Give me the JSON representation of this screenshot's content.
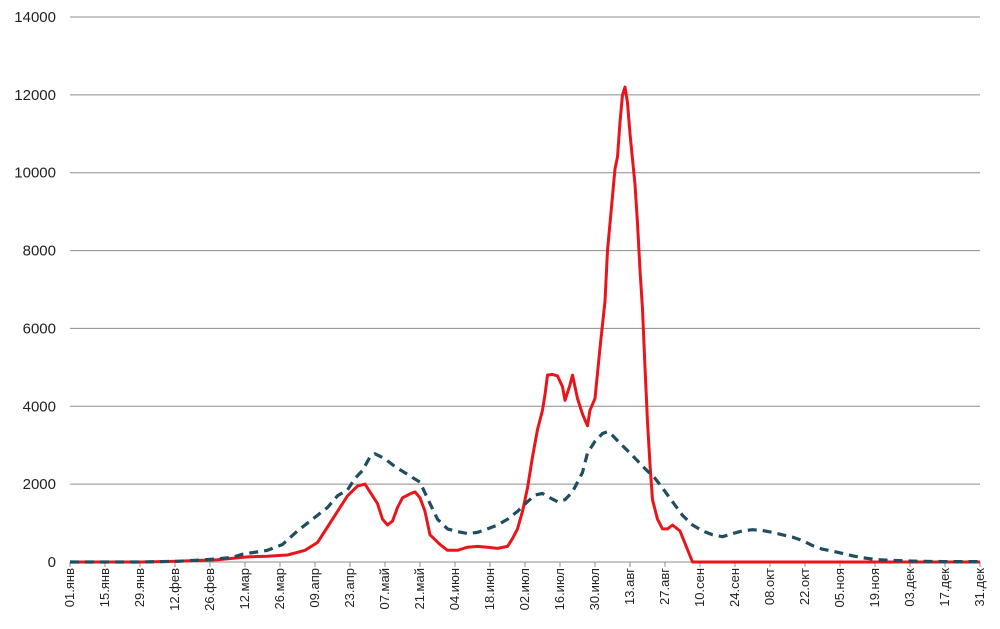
{
  "chart_data": {
    "type": "line",
    "title": "",
    "xlabel": "",
    "ylabel": "",
    "ylim": [
      0,
      14000
    ],
    "y_ticks": [
      "0",
      "2000",
      "4000",
      "6000",
      "8000",
      "10000",
      "12000",
      "14000"
    ],
    "x_range": [
      1,
      365
    ],
    "x_ticks": [
      {
        "day": 1,
        "label": "01.янв"
      },
      {
        "day": 15,
        "label": "15.янв"
      },
      {
        "day": 29,
        "label": "29.янв"
      },
      {
        "day": 43,
        "label": "12.фев"
      },
      {
        "day": 57,
        "label": "26.фев"
      },
      {
        "day": 71,
        "label": "12.мар"
      },
      {
        "day": 85,
        "label": "26.мар"
      },
      {
        "day": 99,
        "label": "09.апр"
      },
      {
        "day": 113,
        "label": "23.апр"
      },
      {
        "day": 127,
        "label": "07.май"
      },
      {
        "day": 141,
        "label": "21.май"
      },
      {
        "day": 155,
        "label": "04.июн"
      },
      {
        "day": 169,
        "label": "18.июн"
      },
      {
        "day": 183,
        "label": "02.июл"
      },
      {
        "day": 197,
        "label": "16.июл"
      },
      {
        "day": 211,
        "label": "30.июл"
      },
      {
        "day": 225,
        "label": "13.авг"
      },
      {
        "day": 239,
        "label": "27.авг"
      },
      {
        "day": 253,
        "label": "10.сен"
      },
      {
        "day": 267,
        "label": "24.сен"
      },
      {
        "day": 281,
        "label": "08.окт"
      },
      {
        "day": 295,
        "label": "22.окт"
      },
      {
        "day": 309,
        "label": "05.ноя"
      },
      {
        "day": 323,
        "label": "19.ноя"
      },
      {
        "day": 337,
        "label": "03.дек"
      },
      {
        "day": 351,
        "label": "17.дек"
      },
      {
        "day": 365,
        "label": "31.дек"
      }
    ],
    "grid": true,
    "series": [
      {
        "style": "solid",
        "color": "#e8151b",
        "points": [
          [
            1,
            0
          ],
          [
            30,
            0
          ],
          [
            44,
            20
          ],
          [
            60,
            60
          ],
          [
            72,
            130
          ],
          [
            80,
            150
          ],
          [
            88,
            180
          ],
          [
            95,
            300
          ],
          [
            100,
            500
          ],
          [
            104,
            900
          ],
          [
            108,
            1300
          ],
          [
            112,
            1700
          ],
          [
            116,
            1950
          ],
          [
            119,
            2000
          ],
          [
            121,
            1800
          ],
          [
            124,
            1500
          ],
          [
            126,
            1100
          ],
          [
            128,
            950
          ],
          [
            130,
            1050
          ],
          [
            132,
            1400
          ],
          [
            134,
            1650
          ],
          [
            137,
            1750
          ],
          [
            139,
            1800
          ],
          [
            141,
            1650
          ],
          [
            143,
            1300
          ],
          [
            145,
            700
          ],
          [
            149,
            450
          ],
          [
            152,
            300
          ],
          [
            156,
            300
          ],
          [
            160,
            380
          ],
          [
            164,
            400
          ],
          [
            168,
            380
          ],
          [
            172,
            350
          ],
          [
            176,
            400
          ],
          [
            178,
            600
          ],
          [
            180,
            850
          ],
          [
            182,
            1300
          ],
          [
            184,
            1900
          ],
          [
            186,
            2700
          ],
          [
            188,
            3400
          ],
          [
            190,
            3900
          ],
          [
            191,
            4300
          ],
          [
            192,
            4800
          ],
          [
            194,
            4820
          ],
          [
            196,
            4780
          ],
          [
            198,
            4500
          ],
          [
            199,
            4150
          ],
          [
            201,
            4550
          ],
          [
            202,
            4800
          ],
          [
            204,
            4200
          ],
          [
            206,
            3800
          ],
          [
            208,
            3500
          ],
          [
            209,
            3900
          ],
          [
            211,
            4200
          ],
          [
            213,
            5500
          ],
          [
            215,
            6700
          ],
          [
            216,
            8000
          ],
          [
            217,
            8700
          ],
          [
            218,
            9400
          ],
          [
            219,
            10100
          ],
          [
            220,
            10400
          ],
          [
            221,
            11300
          ],
          [
            222,
            12000
          ],
          [
            223,
            12200
          ],
          [
            224,
            11800
          ],
          [
            225,
            11000
          ],
          [
            227,
            9700
          ],
          [
            228,
            8700
          ],
          [
            229,
            7500
          ],
          [
            230,
            6500
          ],
          [
            231,
            5000
          ],
          [
            232,
            3600
          ],
          [
            233,
            2500
          ],
          [
            234,
            1600
          ],
          [
            236,
            1100
          ],
          [
            238,
            850
          ],
          [
            240,
            850
          ],
          [
            242,
            950
          ],
          [
            245,
            800
          ],
          [
            250,
            0
          ],
          [
            365,
            0
          ]
        ]
      },
      {
        "style": "dashed",
        "color": "#1f4e5f",
        "points": [
          [
            1,
            0
          ],
          [
            30,
            0
          ],
          [
            45,
            20
          ],
          [
            60,
            80
          ],
          [
            66,
            120
          ],
          [
            70,
            200
          ],
          [
            80,
            300
          ],
          [
            86,
            450
          ],
          [
            92,
            800
          ],
          [
            98,
            1100
          ],
          [
            104,
            1400
          ],
          [
            108,
            1700
          ],
          [
            112,
            1850
          ],
          [
            115,
            2150
          ],
          [
            118,
            2350
          ],
          [
            121,
            2700
          ],
          [
            123,
            2780
          ],
          [
            127,
            2650
          ],
          [
            131,
            2450
          ],
          [
            136,
            2250
          ],
          [
            141,
            2050
          ],
          [
            145,
            1500
          ],
          [
            148,
            1100
          ],
          [
            152,
            850
          ],
          [
            156,
            780
          ],
          [
            160,
            730
          ],
          [
            164,
            760
          ],
          [
            168,
            850
          ],
          [
            172,
            950
          ],
          [
            176,
            1100
          ],
          [
            180,
            1300
          ],
          [
            184,
            1550
          ],
          [
            187,
            1720
          ],
          [
            190,
            1760
          ],
          [
            193,
            1650
          ],
          [
            196,
            1550
          ],
          [
            199,
            1600
          ],
          [
            202,
            1800
          ],
          [
            206,
            2300
          ],
          [
            208,
            2800
          ],
          [
            211,
            3100
          ],
          [
            214,
            3300
          ],
          [
            216,
            3350
          ],
          [
            218,
            3250
          ],
          [
            221,
            3050
          ],
          [
            225,
            2800
          ],
          [
            228,
            2600
          ],
          [
            231,
            2400
          ],
          [
            235,
            2150
          ],
          [
            238,
            1900
          ],
          [
            242,
            1550
          ],
          [
            246,
            1200
          ],
          [
            250,
            950
          ],
          [
            254,
            800
          ],
          [
            258,
            700
          ],
          [
            262,
            650
          ],
          [
            266,
            730
          ],
          [
            270,
            800
          ],
          [
            274,
            830
          ],
          [
            278,
            810
          ],
          [
            282,
            760
          ],
          [
            286,
            700
          ],
          [
            290,
            640
          ],
          [
            294,
            550
          ],
          [
            298,
            420
          ],
          [
            302,
            330
          ],
          [
            306,
            280
          ],
          [
            310,
            220
          ],
          [
            314,
            160
          ],
          [
            318,
            110
          ],
          [
            324,
            60
          ],
          [
            330,
            40
          ],
          [
            340,
            20
          ],
          [
            350,
            10
          ],
          [
            365,
            10
          ]
        ]
      }
    ]
  }
}
